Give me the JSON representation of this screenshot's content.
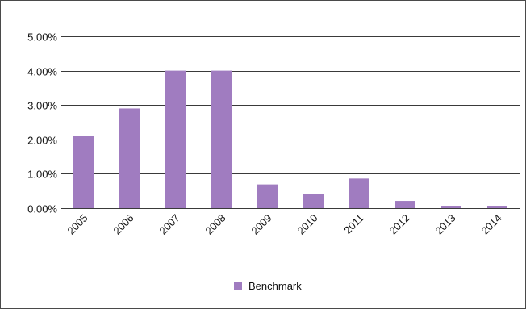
{
  "chart_data": {
    "type": "bar",
    "title": "",
    "xlabel": "",
    "ylabel": "",
    "categories": [
      "2005",
      "2006",
      "2007",
      "2008",
      "2009",
      "2010",
      "2011",
      "2012",
      "2013",
      "2014"
    ],
    "series": [
      {
        "name": "Benchmark",
        "color": "#a07cc0",
        "values": [
          0.021,
          0.029,
          0.04,
          0.04,
          0.0069,
          0.0042,
          0.0086,
          0.0021,
          0.0007,
          0.0007
        ]
      }
    ],
    "ylim": [
      0,
      0.05
    ],
    "yticks": [
      0,
      0.01,
      0.02,
      0.03,
      0.04,
      0.05
    ],
    "ytick_labels": [
      "0.00%",
      "1.00%",
      "2.00%",
      "3.00%",
      "4.00%",
      "5.00%"
    ],
    "grid": true,
    "legend_position": "bottom"
  }
}
